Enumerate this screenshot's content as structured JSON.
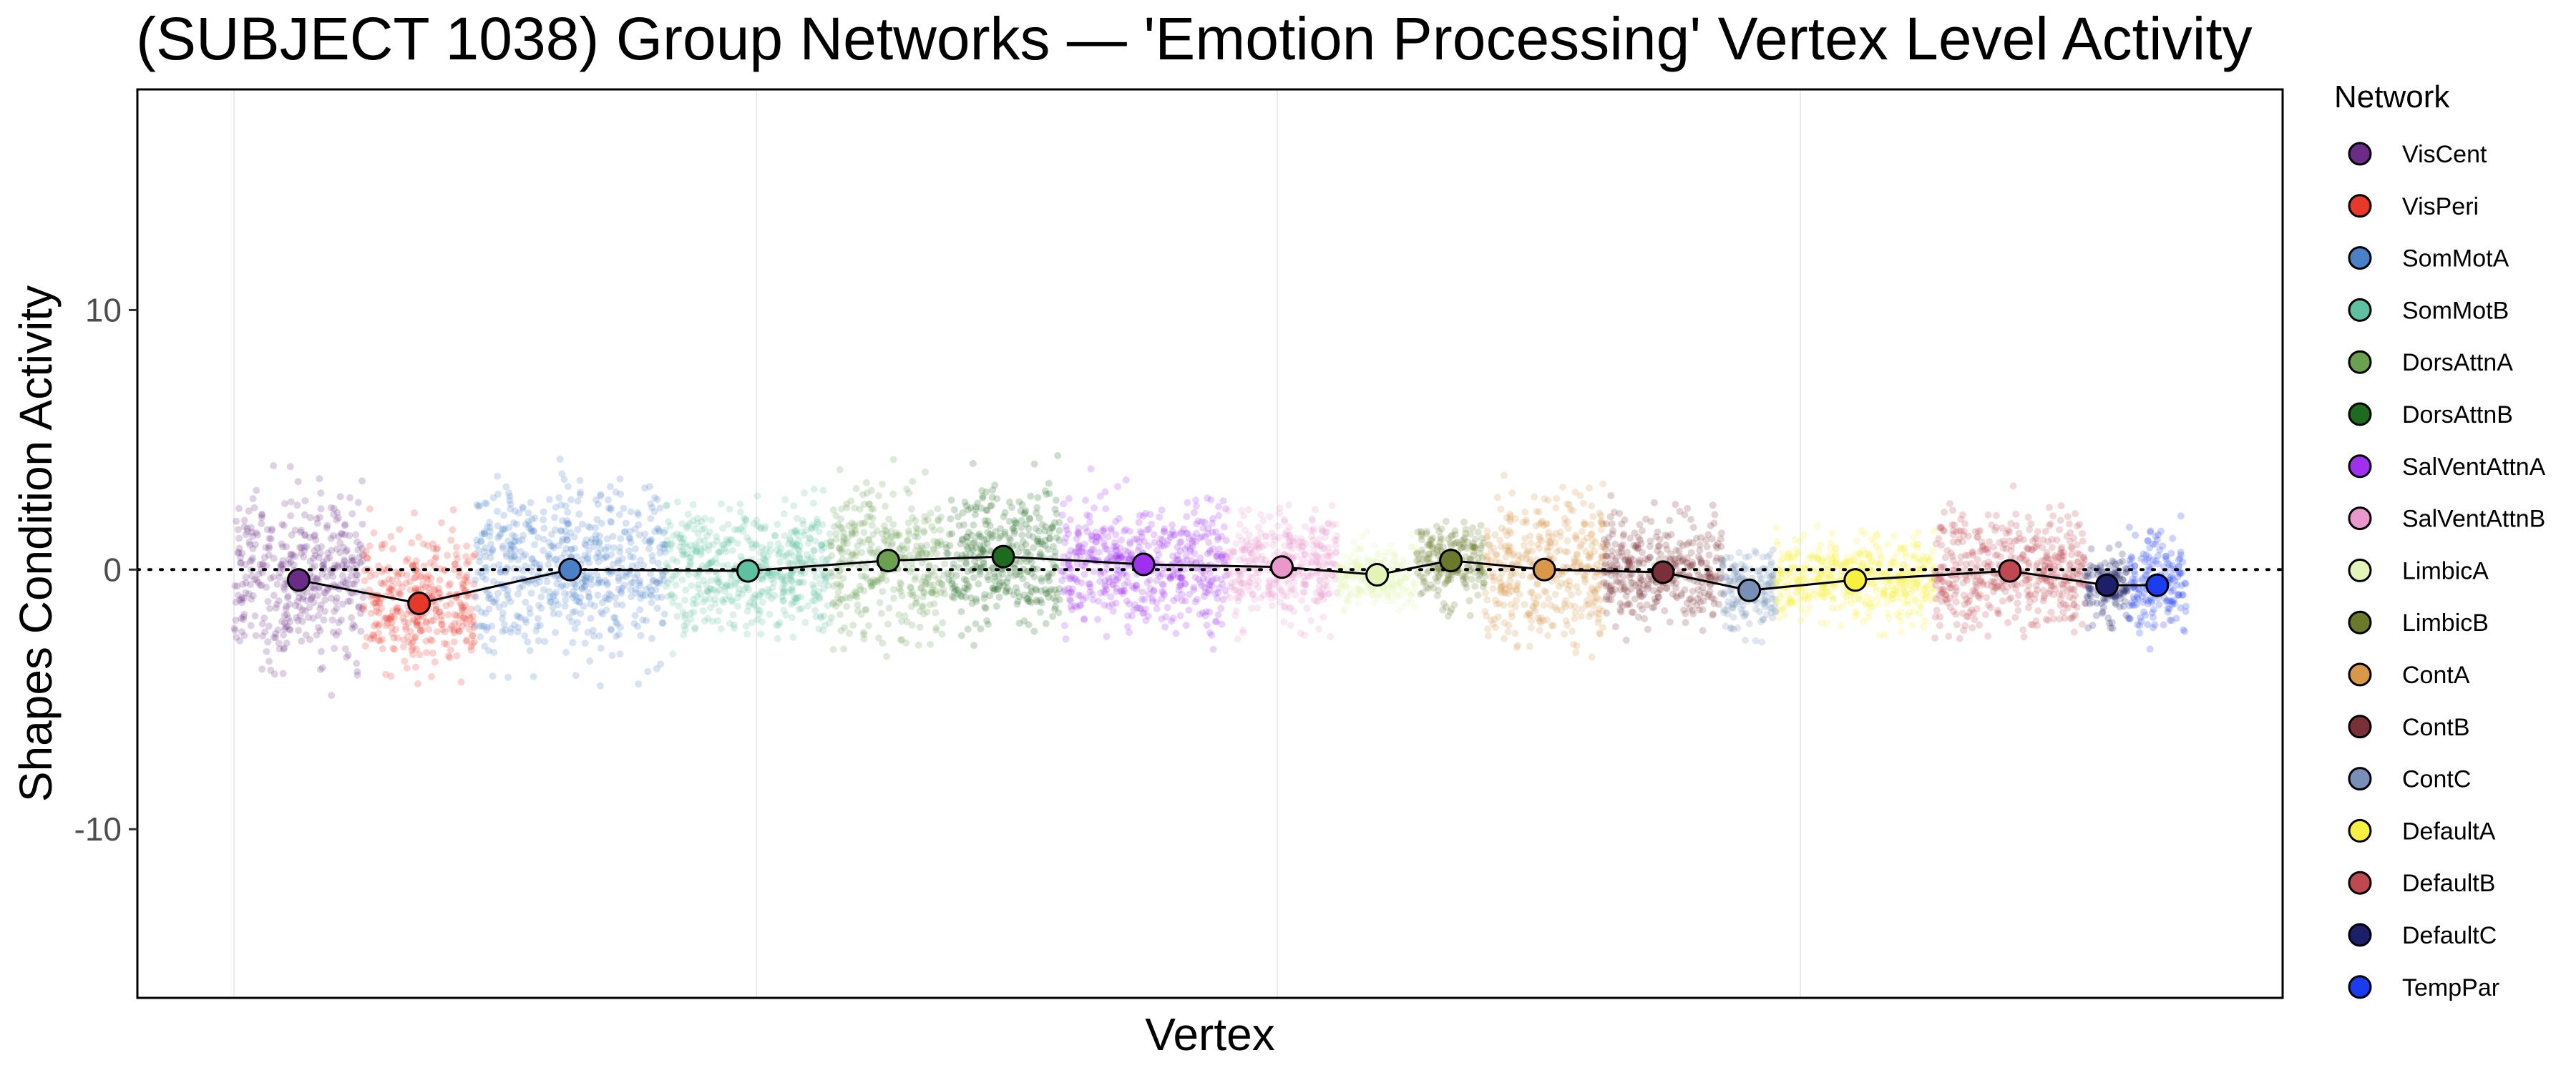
{
  "chart_data": {
    "type": "scatter",
    "title": "(SUBJECT 1038) Group Networks — 'Emotion Processing' Vertex Level Activity",
    "xlabel": "Vertex",
    "ylabel": "Shapes Condition Activity",
    "ylim": [
      -16.5,
      18.5
    ],
    "yticks": [
      {
        "value": 10,
        "label": "10"
      },
      {
        "value": 0,
        "label": "0"
      },
      {
        "value": -10,
        "label": "-10"
      }
    ],
    "reference_line": {
      "y": 0,
      "style": "dotted"
    },
    "grid": "vertical-minor",
    "legend": {
      "title": "Network",
      "position": "right"
    },
    "series": [
      {
        "name": "VisCent",
        "color": "#6a2c86",
        "mean": -0.4,
        "spread": 3.6
      },
      {
        "name": "VisPeri",
        "color": "#e8382a",
        "mean": -1.3,
        "spread": 2.9
      },
      {
        "name": "SomMotA",
        "color": "#4a80c8",
        "mean": 0.0,
        "spread": 3.4
      },
      {
        "name": "SomMotB",
        "color": "#5dc0a0",
        "mean": -0.05,
        "spread": 2.6
      },
      {
        "name": "DorsAttnA",
        "color": "#6aa050",
        "mean": 0.35,
        "spread": 3.3
      },
      {
        "name": "DorsAttnB",
        "color": "#1e6a1e",
        "mean": 0.5,
        "spread": 2.9
      },
      {
        "name": "SalVentAttnA",
        "color": "#a030f0",
        "mean": 0.2,
        "spread": 2.6
      },
      {
        "name": "SalVentAttnB",
        "color": "#ea98cc",
        "mean": 0.1,
        "spread": 2.3
      },
      {
        "name": "LimbicA",
        "color": "#e4f4b8",
        "mean": -0.2,
        "spread": 1.3
      },
      {
        "name": "LimbicB",
        "color": "#6a7a2a",
        "mean": 0.35,
        "spread": 1.6
      },
      {
        "name": "ContA",
        "color": "#d89848",
        "mean": 0.0,
        "spread": 3.0
      },
      {
        "name": "ContB",
        "color": "#7a3038",
        "mean": -0.1,
        "spread": 2.2
      },
      {
        "name": "ContC",
        "color": "#7890b8",
        "mean": -0.8,
        "spread": 1.9
      },
      {
        "name": "DefaultA",
        "color": "#f8f040",
        "mean": -0.4,
        "spread": 1.7
      },
      {
        "name": "DefaultB",
        "color": "#c04850",
        "mean": -0.05,
        "spread": 2.5
      },
      {
        "name": "DefaultC",
        "color": "#1c2068",
        "mean": -0.6,
        "spread": 1.5
      },
      {
        "name": "TempPar",
        "color": "#1c3cf0",
        "mean": -0.6,
        "spread": 2.3
      }
    ]
  }
}
